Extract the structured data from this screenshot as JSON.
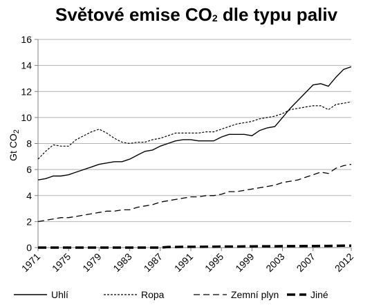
{
  "chart_data": {
    "type": "line",
    "title_prefix": "Světové emise CO",
    "title_sub": "2",
    "title_suffix": " dle typu paliv",
    "ylabel_prefix": "Gt CO",
    "ylabel_sub": "2",
    "xlabel": "",
    "ylim": [
      0,
      16
    ],
    "y_ticks": [
      "0",
      "2",
      "4",
      "6",
      "8",
      "10",
      "12",
      "14",
      "16"
    ],
    "x_ticks": [
      "1971",
      "1975",
      "1979",
      "1983",
      "1987",
      "1991",
      "1995",
      "1999",
      "2003",
      "2007",
      "2012"
    ],
    "grid": "horizontal",
    "legend_position": "bottom",
    "x": [
      1971,
      1972,
      1973,
      1974,
      1975,
      1976,
      1977,
      1978,
      1979,
      1980,
      1981,
      1982,
      1983,
      1984,
      1985,
      1986,
      1987,
      1988,
      1989,
      1990,
      1991,
      1992,
      1993,
      1994,
      1995,
      1996,
      1997,
      1998,
      1999,
      2000,
      2001,
      2002,
      2003,
      2004,
      2005,
      2006,
      2007,
      2008,
      2009,
      2010,
      2011,
      2012
    ],
    "series": [
      {
        "name": "Uhlí",
        "style": "solid",
        "color": "#000000",
        "values": [
          5.2,
          5.3,
          5.5,
          5.5,
          5.6,
          5.8,
          6.0,
          6.2,
          6.4,
          6.5,
          6.6,
          6.6,
          6.8,
          7.1,
          7.4,
          7.5,
          7.8,
          8.0,
          8.2,
          8.3,
          8.3,
          8.2,
          8.2,
          8.2,
          8.5,
          8.7,
          8.7,
          8.7,
          8.6,
          9.0,
          9.2,
          9.3,
          10.0,
          10.7,
          11.3,
          11.9,
          12.5,
          12.6,
          12.4,
          13.1,
          13.7,
          13.9
        ]
      },
      {
        "name": "Ropa",
        "style": "dotted",
        "color": "#000000",
        "values": [
          6.8,
          7.4,
          7.9,
          7.8,
          7.8,
          8.3,
          8.6,
          8.9,
          9.1,
          8.8,
          8.4,
          8.1,
          8.0,
          8.1,
          8.1,
          8.3,
          8.4,
          8.6,
          8.8,
          8.8,
          8.8,
          8.8,
          8.9,
          8.9,
          9.1,
          9.3,
          9.5,
          9.6,
          9.7,
          9.9,
          10.0,
          10.1,
          10.3,
          10.6,
          10.7,
          10.8,
          10.9,
          10.9,
          10.6,
          11.0,
          11.1,
          11.2
        ]
      },
      {
        "name": "Zemní plyn",
        "style": "dashed",
        "color": "#000000",
        "values": [
          2.0,
          2.1,
          2.2,
          2.3,
          2.3,
          2.4,
          2.5,
          2.6,
          2.7,
          2.8,
          2.8,
          2.9,
          2.9,
          3.1,
          3.2,
          3.3,
          3.5,
          3.6,
          3.7,
          3.8,
          3.9,
          3.9,
          4.0,
          4.0,
          4.1,
          4.3,
          4.3,
          4.4,
          4.5,
          4.6,
          4.7,
          4.8,
          5.0,
          5.1,
          5.2,
          5.4,
          5.6,
          5.8,
          5.7,
          6.1,
          6.3,
          6.4
        ]
      },
      {
        "name": "Jiné",
        "style": "thick-dashed",
        "color": "#000000",
        "values": [
          0.0,
          0.0,
          0.0,
          0.0,
          0.0,
          0.0,
          0.0,
          0.0,
          0.0,
          0.0,
          0.0,
          0.0,
          0.0,
          0.0,
          0.0,
          0.0,
          0.0,
          0.05,
          0.05,
          0.06,
          0.06,
          0.06,
          0.07,
          0.07,
          0.08,
          0.08,
          0.08,
          0.09,
          0.09,
          0.1,
          0.1,
          0.1,
          0.11,
          0.11,
          0.11,
          0.12,
          0.12,
          0.13,
          0.13,
          0.14,
          0.15,
          0.15
        ]
      }
    ]
  }
}
